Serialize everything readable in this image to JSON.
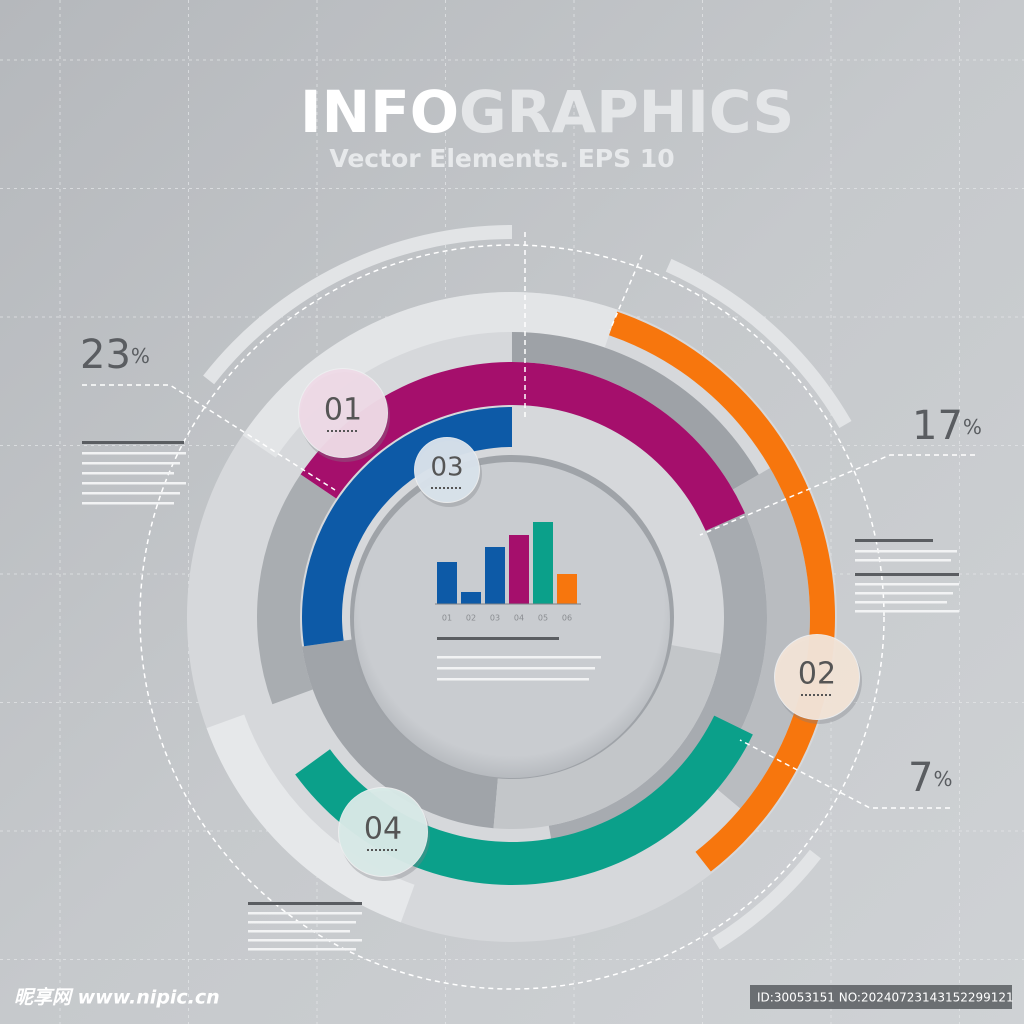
{
  "header": {
    "title": {
      "bold": "INFO",
      "light": "GRAPHICS"
    },
    "subtitle": "Vector Elements. EPS 10"
  },
  "percent_labels": [
    {
      "number": "23",
      "unit": "%"
    },
    {
      "number": "17",
      "unit": "%"
    },
    {
      "number": "7",
      "unit": "%"
    }
  ],
  "badges": [
    "01",
    "02",
    "03",
    "04"
  ],
  "mini_chart": {
    "type": "bar",
    "categories": [
      "01",
      "02",
      "03",
      "04",
      "05",
      "06"
    ],
    "values": [
      42,
      12,
      57,
      69,
      82,
      30
    ],
    "colors": [
      "#0d5aa7",
      "#0d5aa7",
      "#0d5aa7",
      "#a50f6c",
      "#0ba08a",
      "#f7760d"
    ]
  },
  "footer": {
    "watermark": "昵享网 www.nipic.cn",
    "id": "ID:30053151 NO:20240723143152299121"
  }
}
